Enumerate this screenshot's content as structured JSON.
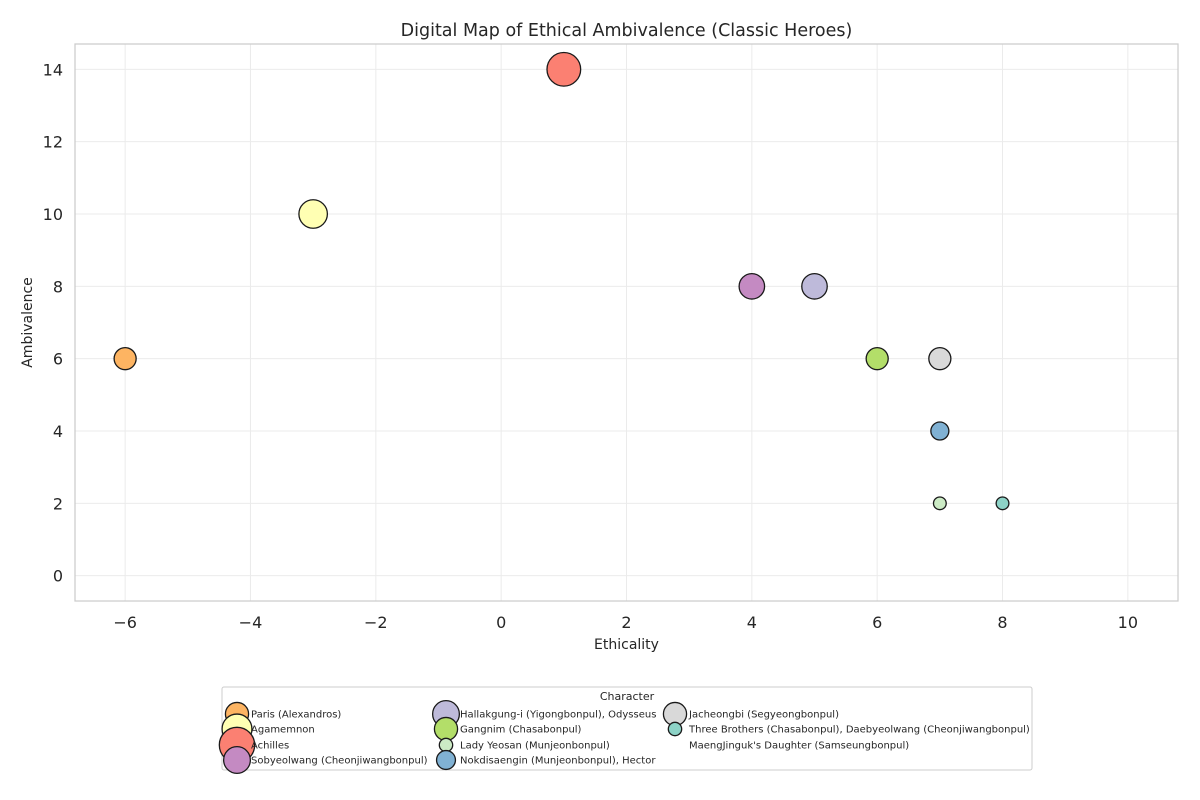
{
  "chart_data": {
    "type": "scatter",
    "title": "Digital Map of Ethical Ambivalence (Classic Heroes)",
    "xlabel": "Ethicality",
    "ylabel": "Ambivalence",
    "xlim": [
      -6.8,
      10.8
    ],
    "ylim": [
      -0.7,
      14.7
    ],
    "xticks": [
      -6,
      -4,
      -2,
      0,
      2,
      4,
      6,
      8,
      10
    ],
    "yticks": [
      0,
      2,
      4,
      6,
      8,
      10,
      12,
      14
    ],
    "grid": true,
    "legend_placement": "bottom-center",
    "legend_title": "Character",
    "series": [
      {
        "name": "Paris (Alexandros)",
        "color": "#fdb462",
        "size": 6,
        "points": [
          {
            "x": -6,
            "y": 6
          }
        ]
      },
      {
        "name": "Agamemnon",
        "color": "#ffffb3",
        "size": 10,
        "points": [
          {
            "x": -3,
            "y": 10
          }
        ]
      },
      {
        "name": "Achilles",
        "color": "#fb8072",
        "size": 14,
        "points": [
          {
            "x": 1,
            "y": 14
          }
        ]
      },
      {
        "name": "Sobyeolwang (Cheonjiwangbonpul)",
        "color": "#c48ac2",
        "size": 8,
        "points": [
          {
            "x": 4,
            "y": 8
          }
        ]
      },
      {
        "name": "Hallakgung-i (Yigongbonpul), Odysseus",
        "color": "#bebada",
        "size": 8,
        "points": [
          {
            "x": 5,
            "y": 8
          }
        ]
      },
      {
        "name": "Gangnim (Chasabonpul)",
        "color": "#b3de69",
        "size": 6,
        "points": [
          {
            "x": 6,
            "y": 6
          }
        ]
      },
      {
        "name": "Lady Yeosan (Munjeonbonpul)",
        "color": "#ccebc5",
        "size": 2,
        "points": [
          {
            "x": 7,
            "y": 2
          }
        ]
      },
      {
        "name": "Nokdisaengin (Munjeonbonpul), Hector",
        "color": "#80b1d3",
        "size": 4,
        "points": [
          {
            "x": 7,
            "y": 4
          }
        ]
      },
      {
        "name": "Jacheongbi (Segyeongbonpul)",
        "color": "#d9d9d9",
        "size": 6,
        "points": [
          {
            "x": 7,
            "y": 6
          }
        ]
      },
      {
        "name": "Three Brothers (Chasabonpul), Daebyeolwang (Cheonjiwangbonpul)",
        "color": "#8dd3c7",
        "size": 2,
        "points": [
          {
            "x": 8,
            "y": 2
          }
        ]
      },
      {
        "name": "MaengJinguk's Daughter (Samseungbonpul)",
        "color": "none",
        "size": 0,
        "points": []
      }
    ]
  }
}
